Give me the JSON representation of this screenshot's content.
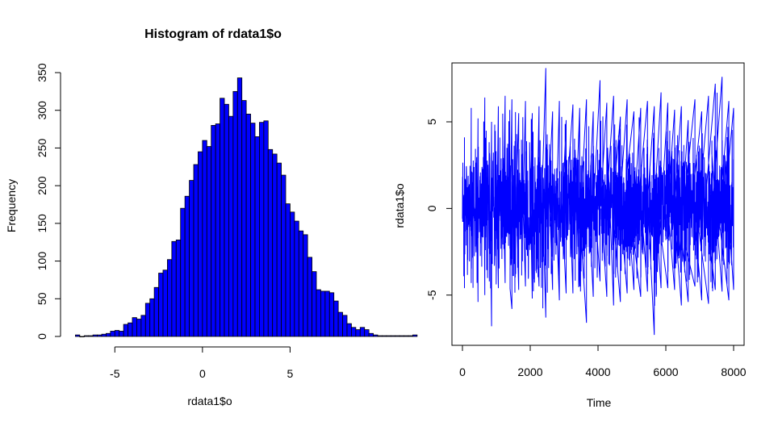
{
  "chart_data": [
    {
      "type": "bar",
      "title": "Histogram of rdata1$o",
      "xlabel": "rdata1$o",
      "ylabel": "Frequency",
      "xlim": [
        -7.5,
        8.25
      ],
      "ylim": [
        0,
        350
      ],
      "x_ticks": [
        -5,
        0,
        5
      ],
      "y_ticks": [
        0,
        50,
        100,
        150,
        200,
        250,
        300,
        350
      ],
      "bin_width": 0.25,
      "bin_start": -7.25,
      "values": [
        2,
        0,
        1,
        1,
        2,
        2,
        3,
        4,
        7,
        8,
        7,
        16,
        18,
        25,
        23,
        28,
        44,
        50,
        65,
        84,
        88,
        102,
        126,
        128,
        170,
        186,
        207,
        228,
        245,
        260,
        252,
        280,
        282,
        316,
        308,
        292,
        325,
        343,
        313,
        295,
        283,
        265,
        284,
        286,
        248,
        242,
        230,
        214,
        176,
        165,
        153,
        140,
        135,
        105,
        86,
        62,
        60,
        60,
        58,
        47,
        32,
        28,
        17,
        12,
        9,
        12,
        9,
        4,
        2,
        1,
        1,
        1,
        1,
        1,
        1,
        1,
        1,
        2
      ]
    },
    {
      "type": "line",
      "xlabel": "Time",
      "ylabel": "rdata1$o",
      "color": "#0000FF",
      "xlim": [
        0,
        8000
      ],
      "ylim": [
        -7.9,
        8.4
      ],
      "x_ticks": [
        0,
        2000,
        4000,
        6000,
        8000
      ],
      "y_ticks": [
        -5,
        0,
        5
      ],
      "n_points": 8000,
      "envelope": {
        "x": [
          0,
          200,
          400,
          600,
          800,
          1000,
          1200,
          1400,
          1600,
          1800,
          2000,
          2200,
          2400,
          2600,
          2800,
          3000,
          3200,
          3400,
          3600,
          3800,
          4000,
          4200,
          4400,
          4600,
          4800,
          5000,
          5200,
          5400,
          5600,
          5800,
          6000,
          6200,
          6400,
          6600,
          6800,
          7000,
          7200,
          7400,
          7600,
          7800,
          8000
        ],
        "max": [
          4.1,
          5.8,
          5.2,
          6.4,
          5.0,
          5.9,
          6.5,
          6.3,
          5.5,
          6.2,
          5.5,
          5.9,
          8.1,
          5.6,
          6.2,
          5.1,
          6.0,
          5.8,
          6.3,
          5.6,
          7.4,
          6.1,
          6.5,
          5.3,
          6.3,
          5.6,
          5.8,
          6.2,
          5.9,
          6.7,
          6.1,
          5.7,
          5.9,
          5.1,
          6.3,
          5.6,
          6.5,
          7.2,
          7.6,
          6.2,
          5.8
        ],
        "min": [
          -4.6,
          -4.3,
          -5.4,
          -5.0,
          -6.8,
          -4.6,
          -4.3,
          -5.8,
          -4.7,
          -4.5,
          -5.2,
          -4.5,
          -6.3,
          -4.7,
          -5.3,
          -4.9,
          -4.9,
          -4.5,
          -6.6,
          -5.1,
          -4.2,
          -5.1,
          -5.6,
          -5.4,
          -4.9,
          -4.7,
          -5.1,
          -4.8,
          -7.3,
          -4.6,
          -4.6,
          -4.7,
          -5.6,
          -5.4,
          -4.5,
          -5.3,
          -5.5,
          -4.7,
          -4.8,
          -5.3,
          -4.7
        ],
        "core": 3.0
      }
    }
  ]
}
